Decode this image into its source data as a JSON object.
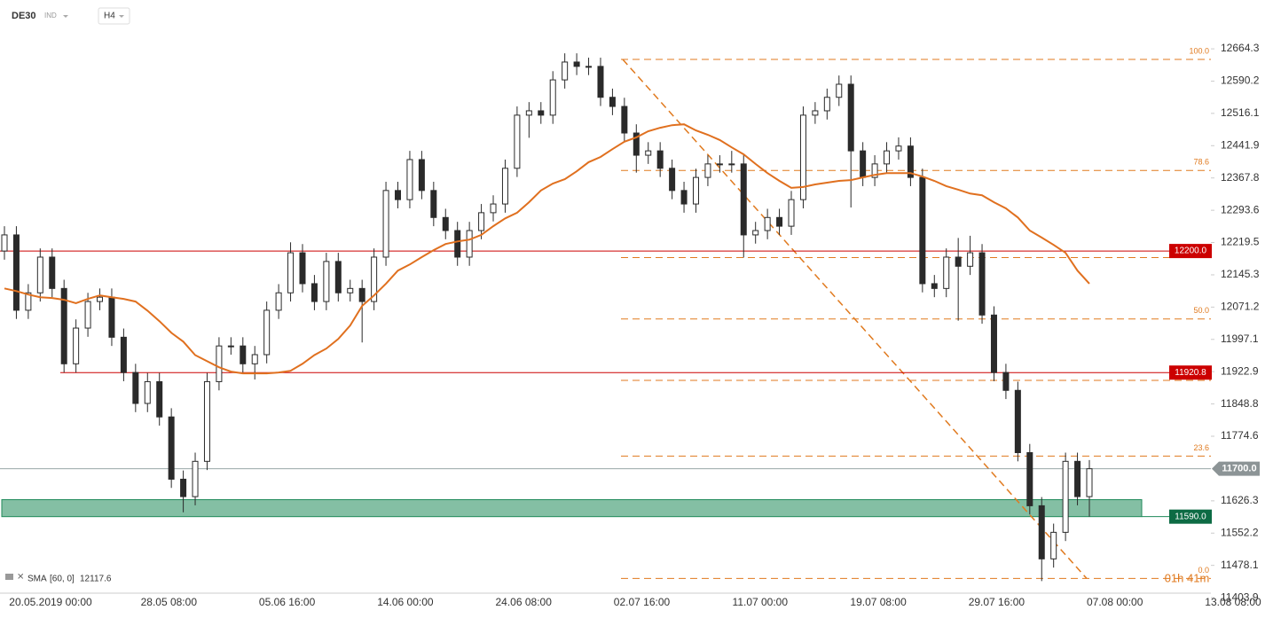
{
  "chart_data": {
    "type": "candlestick",
    "symbol": "DE30",
    "market": "IND",
    "interval": "H4",
    "ylim": [
      11400,
      12695
    ],
    "yticks": [
      12664.3,
      12590.2,
      12516.1,
      12441.9,
      12367.8,
      12293.6,
      12219.5,
      12145.3,
      12071.2,
      11997.1,
      11922.9,
      11848.8,
      11774.6,
      11626.3,
      11552.2,
      11478.1,
      11403.9
    ],
    "x_labels": [
      "20.05.2019  00:00",
      "28.05  08:00",
      "05.06  16:00",
      "14.06  00:00",
      "24.06  08:00",
      "02.07  16:00",
      "11.07  00:00",
      "19.07  08:00",
      "29.07  16:00",
      "07.08  00:00",
      "13.08  08:00"
    ],
    "open": [
      12200,
      12237,
      12064,
      12104,
      12186,
      12114,
      11941,
      12023,
      12084,
      12094,
      12002,
      11921,
      11850,
      11900,
      11819,
      11676,
      11636,
      11717,
      11900,
      11982,
      11982,
      11941,
      11962,
      12064,
      12104,
      12196,
      12125,
      12084,
      12176,
      12104,
      12114,
      12084,
      12186,
      12339,
      12318,
      12410,
      12339,
      12277,
      12247,
      12186,
      12247,
      12288,
      12308,
      12390,
      12512,
      12522,
      12512,
      12593,
      12634,
      12624,
      12624,
      12553,
      12532,
      12471,
      12420,
      12430,
      12390,
      12339,
      12308,
      12369,
      12400,
      12400,
      12400,
      12237,
      12247,
      12277,
      12257,
      12318,
      12512,
      12522,
      12553,
      12583,
      12430,
      12369,
      12400,
      12430,
      12441,
      12369,
      12125,
      12114,
      12186,
      12165,
      12196,
      12053,
      11921,
      11880,
      11737,
      11615,
      11493,
      11554,
      11717,
      11636
    ],
    "high": [
      12257,
      12257,
      12124,
      12206,
      12206,
      12134,
      12043,
      12104,
      12114,
      12114,
      12022,
      11941,
      11920,
      11920,
      11839,
      11696,
      11737,
      11920,
      12002,
      12002,
      12002,
      11982,
      12084,
      12124,
      12220,
      12216,
      12145,
      12196,
      12196,
      12134,
      12134,
      12206,
      12359,
      12359,
      12430,
      12430,
      12359,
      12297,
      12267,
      12267,
      12308,
      12328,
      12410,
      12532,
      12542,
      12542,
      12613,
      12654,
      12654,
      12644,
      12644,
      12573,
      12552,
      12491,
      12450,
      12450,
      12410,
      12359,
      12389,
      12420,
      12420,
      12430,
      12420,
      12267,
      12297,
      12297,
      12338,
      12532,
      12542,
      12573,
      12603,
      12603,
      12450,
      12420,
      12450,
      12461,
      12461,
      12389,
      12145,
      12206,
      12230,
      12235,
      12216,
      12073,
      11941,
      11900,
      11757,
      11635,
      11574,
      11737,
      11737,
      11720
    ],
    "low": [
      12180,
      12044,
      12044,
      12084,
      12094,
      11921,
      11921,
      12003,
      12064,
      11982,
      11901,
      11830,
      11830,
      11799,
      11656,
      11600,
      11616,
      11697,
      11880,
      11962,
      11921,
      11905,
      11942,
      12044,
      12084,
      12105,
      12064,
      12064,
      12084,
      12084,
      11990,
      12064,
      12166,
      12298,
      12298,
      12319,
      12257,
      12227,
      12166,
      12166,
      12227,
      12268,
      12288,
      12370,
      12460,
      12492,
      12492,
      12573,
      12604,
      12604,
      12533,
      12512,
      12451,
      12380,
      12400,
      12370,
      12319,
      12288,
      12288,
      12349,
      12380,
      12380,
      12185,
      12217,
      12227,
      12237,
      12237,
      12298,
      12492,
      12502,
      12533,
      12300,
      12349,
      12349,
      12380,
      12410,
      12349,
      12105,
      12094,
      12094,
      12040,
      12145,
      12033,
      11901,
      11860,
      11717,
      11595,
      11442,
      11473,
      11534,
      11616,
      11590
    ],
    "close": [
      12237,
      12064,
      12104,
      12186,
      12114,
      11941,
      12023,
      12084,
      12094,
      12002,
      11921,
      11850,
      11900,
      11819,
      11676,
      11636,
      11717,
      11900,
      11982,
      11982,
      11941,
      11962,
      12064,
      12104,
      12196,
      12125,
      12084,
      12176,
      12104,
      12114,
      12084,
      12186,
      12339,
      12318,
      12410,
      12339,
      12277,
      12247,
      12186,
      12247,
      12288,
      12308,
      12390,
      12512,
      12522,
      12512,
      12593,
      12634,
      12624,
      12624,
      12553,
      12532,
      12471,
      12420,
      12430,
      12390,
      12339,
      12308,
      12369,
      12400,
      12400,
      12400,
      12237,
      12247,
      12277,
      12257,
      12318,
      12512,
      12522,
      12553,
      12583,
      12430,
      12369,
      12400,
      12430,
      12441,
      12369,
      12125,
      12114,
      12186,
      12165,
      12196,
      12053,
      11921,
      11880,
      11737,
      11615,
      11493,
      11554,
      11717,
      11636,
      11700
    ],
    "sma": {
      "name": "SMA",
      "params": "[60, 0]",
      "value": 12117.6,
      "color": "#e0701f",
      "values": [
        12114,
        12108,
        12100,
        12094,
        12092,
        12088,
        12080,
        12090,
        12098,
        12094,
        12090,
        12084,
        12063,
        12039,
        12012,
        11992,
        11961,
        11947,
        11933,
        11923,
        11919,
        11919,
        11919,
        11921,
        11925,
        11941,
        11961,
        11976,
        11998,
        12029,
        12074,
        12098,
        12125,
        12155,
        12169,
        12186,
        12202,
        12216,
        12222,
        12226,
        12237,
        12257,
        12275,
        12288,
        12312,
        12339,
        12355,
        12365,
        12383,
        12404,
        12416,
        12434,
        12451,
        12461,
        12475,
        12483,
        12489,
        12491,
        12477,
        12467,
        12455,
        12438,
        12422,
        12400,
        12379,
        12361,
        12345,
        12347,
        12353,
        12357,
        12361,
        12363,
        12369,
        12375,
        12379,
        12379,
        12379,
        12371,
        12361,
        12349,
        12341,
        12332,
        12328,
        12312,
        12298,
        12277,
        12247,
        12231,
        12214,
        12196,
        12155,
        12125
      ]
    },
    "levels": [
      {
        "value": 12200,
        "label": "12200.0",
        "color": "#cc0000"
      },
      {
        "value": 11920.8,
        "label": "11920.8",
        "color": "#cc0000"
      }
    ],
    "zone": {
      "low": 11590,
      "high": 11629,
      "label": "11590.0",
      "color": "#1f8a5a"
    },
    "current_price": {
      "value": 11700,
      "label": "11700.0"
    },
    "fib": {
      "from": 11448,
      "to": 12640,
      "color": "#e07a1f",
      "levels": [
        {
          "value": 12640,
          "label": "100.0"
        },
        {
          "value": 12385,
          "label": "78.6"
        },
        {
          "value": 12185
        },
        {
          "value": 12044,
          "label": "50.0"
        },
        {
          "value": 11903
        },
        {
          "value": 11729,
          "label": "23.6"
        },
        {
          "value": 11448,
          "label": "0.0"
        }
      ]
    },
    "countdown": "01h 41m"
  }
}
